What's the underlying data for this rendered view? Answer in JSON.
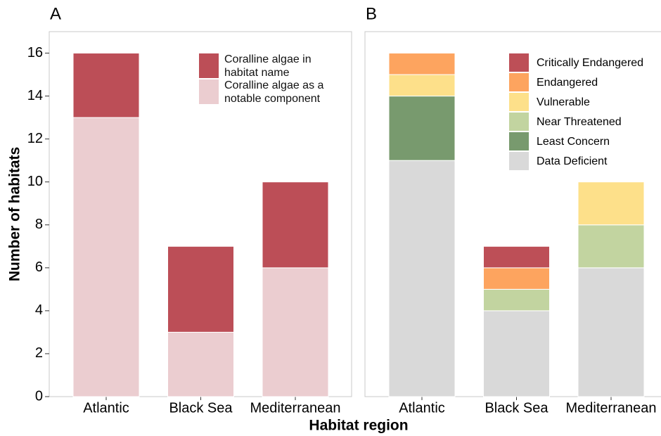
{
  "chart_data": [
    {
      "type": "bar",
      "stacked": true,
      "title": "A",
      "y_label": "Number of habitats",
      "x_label": "Habitat region",
      "categories": [
        "Atlantic",
        "Black Sea",
        "Mediterranean"
      ],
      "series": [
        {
          "name": "Coralline algae as a notable component",
          "color": "#ebcdd0",
          "values": [
            13,
            3,
            6
          ]
        },
        {
          "name": "Coralline algae in habitat name",
          "color": "#bc4e57",
          "values": [
            3,
            4,
            4
          ]
        }
      ],
      "ylim": [
        0,
        17
      ],
      "yticks": [
        0,
        2,
        4,
        6,
        8,
        10,
        12,
        14,
        16
      ],
      "legend": "top-right"
    },
    {
      "type": "bar",
      "stacked": true,
      "title": "B",
      "categories": [
        "Atlantic",
        "Black Sea",
        "Mediterranean"
      ],
      "series": [
        {
          "name": "Data Deficient",
          "color": "#d9d9d9",
          "values": [
            11,
            4,
            6
          ]
        },
        {
          "name": "Least Concern",
          "color": "#789a6e",
          "values": [
            3,
            0,
            0
          ]
        },
        {
          "name": "Near Threatened",
          "color": "#c2d4a0",
          "values": [
            0,
            1,
            2
          ]
        },
        {
          "name": "Vulnerable",
          "color": "#fde08a",
          "values": [
            1,
            0,
            2
          ]
        },
        {
          "name": "Endangered",
          "color": "#fda45f",
          "values": [
            1,
            1,
            0
          ]
        },
        {
          "name": "Critically Endangered",
          "color": "#bd4f57",
          "values": [
            0,
            1,
            0
          ]
        }
      ],
      "ylim": [
        0,
        17
      ],
      "legend": "top-right"
    }
  ]
}
